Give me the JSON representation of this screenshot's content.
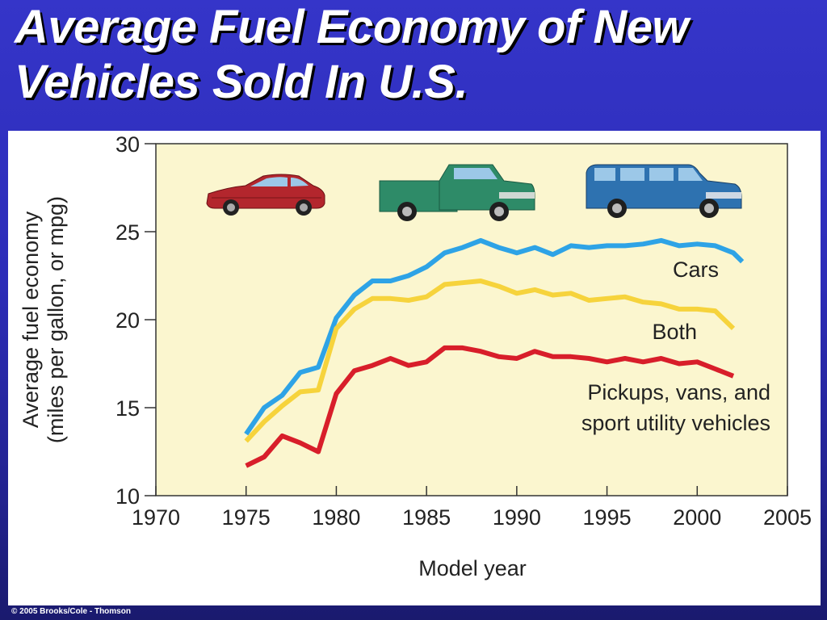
{
  "slide": {
    "title_line1": "Average Fuel Economy of New",
    "title_line2": "Vehicles Sold In U.S.",
    "copyright": "© 2005 Brooks/Cole - Thomson"
  },
  "colors": {
    "background": "#2e2ebd",
    "plot_background": "#fbf6cf",
    "cars": "#2ea3e6",
    "both": "#f6d33c",
    "trucks": "#d81e2a",
    "car_icon": "#b3262d",
    "pickup_icon": "#2e8b68",
    "suv_icon": "#2e72b0"
  },
  "icons": [
    "sedan-car-icon",
    "pickup-truck-icon",
    "suv-icon"
  ],
  "chart_data": {
    "type": "line",
    "title": "",
    "xlabel": "Model year",
    "ylabel_line1": "Average fuel economy",
    "ylabel_line2": "(miles per gallon, or mpg)",
    "xlim": [
      1970,
      2005
    ],
    "ylim": [
      10,
      30
    ],
    "xticks": [
      1970,
      1975,
      1980,
      1985,
      1990,
      1995,
      2000,
      2005
    ],
    "yticks": [
      10,
      15,
      20,
      25,
      30
    ],
    "grid": false,
    "series": [
      {
        "key": "cars",
        "name": "Cars",
        "x": [
          1975,
          1976,
          1977,
          1978,
          1979,
          1980,
          1981,
          1982,
          1983,
          1984,
          1985,
          1986,
          1987,
          1988,
          1989,
          1990,
          1991,
          1992,
          1993,
          1994,
          1995,
          1996,
          1997,
          1998,
          1999,
          2000,
          2001,
          2002,
          2002.5
        ],
        "y": [
          13.5,
          15.0,
          15.7,
          17.0,
          17.3,
          20.1,
          21.4,
          22.2,
          22.2,
          22.5,
          23.0,
          23.8,
          24.1,
          24.5,
          24.1,
          23.8,
          24.1,
          23.7,
          24.2,
          24.1,
          24.2,
          24.2,
          24.3,
          24.5,
          24.2,
          24.3,
          24.2,
          23.8,
          23.3
        ]
      },
      {
        "key": "both",
        "name": "Both",
        "x": [
          1975,
          1976,
          1977,
          1978,
          1979,
          1980,
          1981,
          1982,
          1983,
          1984,
          1985,
          1986,
          1987,
          1988,
          1989,
          1990,
          1991,
          1992,
          1993,
          1994,
          1995,
          1996,
          1997,
          1998,
          1999,
          2000,
          2001,
          2002
        ],
        "y": [
          13.1,
          14.2,
          15.1,
          15.9,
          16.0,
          19.5,
          20.6,
          21.2,
          21.2,
          21.1,
          21.3,
          22.0,
          22.1,
          22.2,
          21.9,
          21.5,
          21.7,
          21.4,
          21.5,
          21.1,
          21.2,
          21.3,
          21.0,
          20.9,
          20.6,
          20.6,
          20.5,
          19.5
        ]
      },
      {
        "key": "trucks",
        "name_line1": "Pickups, vans, and",
        "name_line2": "sport utility vehicles",
        "x": [
          1975,
          1976,
          1977,
          1978,
          1979,
          1980,
          1981,
          1982,
          1983,
          1984,
          1985,
          1986,
          1987,
          1988,
          1989,
          1990,
          1991,
          1992,
          1993,
          1994,
          1995,
          1996,
          1997,
          1998,
          1999,
          2000,
          2001,
          2002
        ],
        "y": [
          11.7,
          12.2,
          13.4,
          13.0,
          12.5,
          15.8,
          17.1,
          17.4,
          17.8,
          17.4,
          17.6,
          18.4,
          18.4,
          18.2,
          17.9,
          17.8,
          18.2,
          17.9,
          17.9,
          17.8,
          17.6,
          17.8,
          17.6,
          17.8,
          17.5,
          17.6,
          17.2,
          16.8
        ]
      }
    ]
  }
}
